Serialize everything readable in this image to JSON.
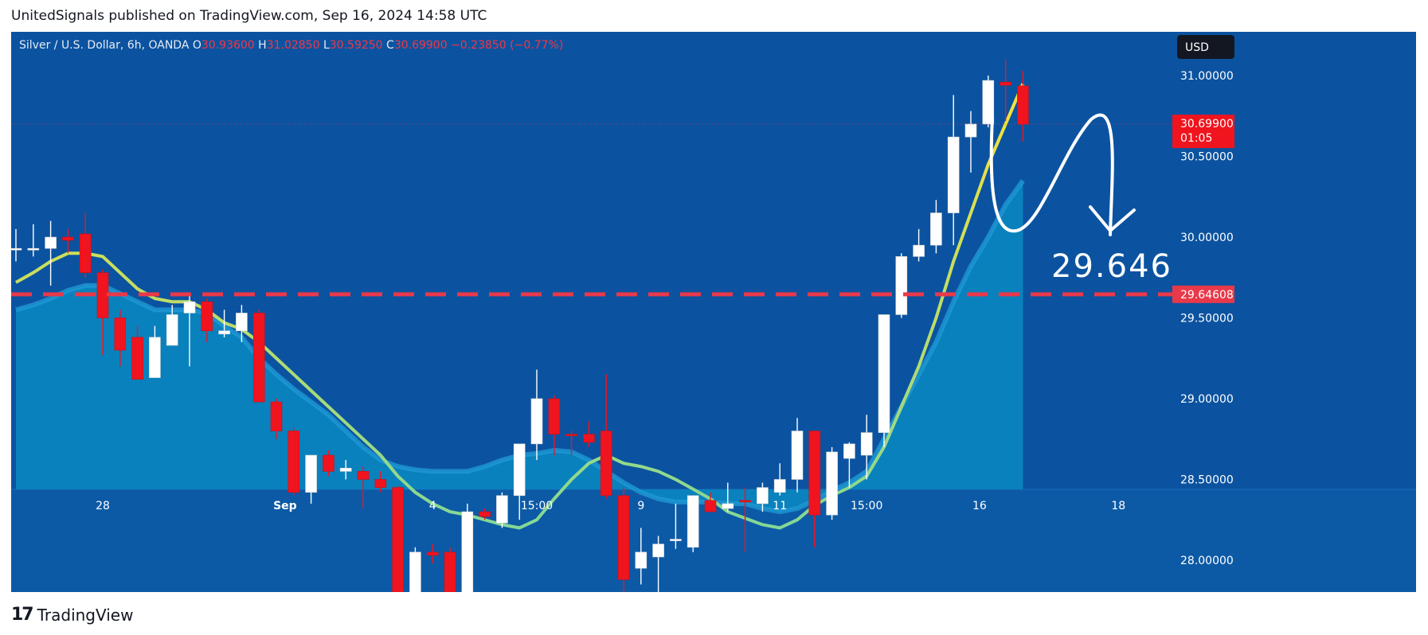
{
  "header": {
    "published": "UnitedSignals published on TradingView.com, Sep 16, 2024 14:58 UTC"
  },
  "legend": {
    "symbol": "Silver / U.S. Dollar, 6h, OANDA",
    "o_label": "O",
    "o_value": "30.93600",
    "h_label": "H",
    "h_value": "31.02850",
    "l_label": "L",
    "l_value": "30.59250",
    "c_label": "C",
    "c_value": "30.69900",
    "change": "−0.23850 (−0.77%)"
  },
  "currency_button": "USD",
  "price_badge": {
    "price": "30.69900",
    "countdown": "01:05"
  },
  "level_badge": "29.64608",
  "annotation_text": "29.646",
  "footer": {
    "brand": "TradingView",
    "mark": "17"
  },
  "colors": {
    "background": "#0b53a0",
    "area_fill": "#0a86bf",
    "up_candle": "#ffffff",
    "down_candle": "#f0141e",
    "ma_yellow": "#f5e23a",
    "level_line": "#e8394a",
    "axis_text": "#ffffff"
  },
  "chart_data": {
    "type": "candlestick",
    "title": "Silver / U.S. Dollar, 6h, OANDA",
    "ylim": [
      27.7,
      31.2
    ],
    "y_ticks": [
      "31.00000",
      "30.50000",
      "30.00000",
      "29.50000",
      "29.00000",
      "28.50000",
      "28.00000"
    ],
    "x_ticks": [
      {
        "label": "28",
        "index": 5
      },
      {
        "label": "Sep",
        "index": 15.5
      },
      {
        "label": "4",
        "index": 24
      },
      {
        "label": "15:00",
        "index": 30
      },
      {
        "label": "9",
        "index": 36
      },
      {
        "label": "11",
        "index": 44
      },
      {
        "label": "15:00",
        "index": 49
      },
      {
        "label": "16",
        "index": 55.5
      },
      {
        "label": "18",
        "index": 63.5
      }
    ],
    "horizontal_level": 29.64608,
    "current_price": 30.699,
    "candles": [
      {
        "o": 29.93,
        "h": 30.05,
        "l": 29.85,
        "c": 29.93
      },
      {
        "o": 29.92,
        "h": 30.08,
        "l": 29.88,
        "c": 29.93
      },
      {
        "o": 29.93,
        "h": 30.1,
        "l": 29.7,
        "c": 30.0
      },
      {
        "o": 30.0,
        "h": 30.05,
        "l": 29.9,
        "c": 29.98
      },
      {
        "o": 30.02,
        "h": 30.15,
        "l": 29.75,
        "c": 29.78
      },
      {
        "o": 29.78,
        "h": 29.8,
        "l": 29.27,
        "c": 29.5
      },
      {
        "o": 29.5,
        "h": 29.55,
        "l": 29.2,
        "c": 29.3
      },
      {
        "o": 29.38,
        "h": 29.45,
        "l": 29.12,
        "c": 29.12
      },
      {
        "o": 29.13,
        "h": 29.45,
        "l": 29.13,
        "c": 29.38
      },
      {
        "o": 29.33,
        "h": 29.58,
        "l": 29.33,
        "c": 29.52
      },
      {
        "o": 29.53,
        "h": 29.65,
        "l": 29.2,
        "c": 29.6
      },
      {
        "o": 29.6,
        "h": 29.62,
        "l": 29.35,
        "c": 29.42
      },
      {
        "o": 29.4,
        "h": 29.55,
        "l": 29.38,
        "c": 29.42
      },
      {
        "o": 29.42,
        "h": 29.58,
        "l": 29.35,
        "c": 29.53
      },
      {
        "o": 29.53,
        "h": 29.55,
        "l": 28.98,
        "c": 28.98
      },
      {
        "o": 28.98,
        "h": 29.0,
        "l": 28.75,
        "c": 28.8
      },
      {
        "o": 28.8,
        "h": 28.82,
        "l": 28.4,
        "c": 28.42
      },
      {
        "o": 28.42,
        "h": 28.65,
        "l": 28.35,
        "c": 28.65
      },
      {
        "o": 28.65,
        "h": 28.68,
        "l": 28.52,
        "c": 28.55
      },
      {
        "o": 28.55,
        "h": 28.62,
        "l": 28.5,
        "c": 28.57
      },
      {
        "o": 28.55,
        "h": 28.58,
        "l": 28.32,
        "c": 28.5
      },
      {
        "o": 28.5,
        "h": 28.55,
        "l": 28.42,
        "c": 28.45
      },
      {
        "o": 28.45,
        "h": 28.46,
        "l": 27.72,
        "c": 27.8
      },
      {
        "o": 27.8,
        "h": 28.08,
        "l": 27.78,
        "c": 28.05
      },
      {
        "o": 28.05,
        "h": 28.1,
        "l": 27.98,
        "c": 28.03
      },
      {
        "o": 28.05,
        "h": 28.08,
        "l": 27.77,
        "c": 27.78
      },
      {
        "o": 27.78,
        "h": 28.35,
        "l": 27.78,
        "c": 28.3
      },
      {
        "o": 28.3,
        "h": 28.32,
        "l": 28.25,
        "c": 28.27
      },
      {
        "o": 28.23,
        "h": 28.42,
        "l": 28.2,
        "c": 28.4
      },
      {
        "o": 28.4,
        "h": 28.72,
        "l": 28.25,
        "c": 28.72
      },
      {
        "o": 28.72,
        "h": 29.18,
        "l": 28.62,
        "c": 29.0
      },
      {
        "o": 29.0,
        "h": 29.02,
        "l": 28.65,
        "c": 28.78
      },
      {
        "o": 28.78,
        "h": 28.8,
        "l": 28.65,
        "c": 28.77
      },
      {
        "o": 28.78,
        "h": 28.86,
        "l": 28.7,
        "c": 28.73
      },
      {
        "o": 28.8,
        "h": 29.15,
        "l": 28.38,
        "c": 28.4
      },
      {
        "o": 28.4,
        "h": 28.45,
        "l": 27.68,
        "c": 27.88
      },
      {
        "o": 27.95,
        "h": 28.2,
        "l": 27.85,
        "c": 28.05
      },
      {
        "o": 28.02,
        "h": 28.15,
        "l": 27.7,
        "c": 28.1
      },
      {
        "o": 28.12,
        "h": 28.35,
        "l": 28.07,
        "c": 28.13
      },
      {
        "o": 28.08,
        "h": 28.4,
        "l": 28.05,
        "c": 28.4
      },
      {
        "o": 28.37,
        "h": 28.42,
        "l": 28.3,
        "c": 28.3
      },
      {
        "o": 28.32,
        "h": 28.48,
        "l": 28.3,
        "c": 28.35
      },
      {
        "o": 28.37,
        "h": 28.45,
        "l": 28.05,
        "c": 28.36
      },
      {
        "o": 28.35,
        "h": 28.48,
        "l": 28.3,
        "c": 28.45
      },
      {
        "o": 28.42,
        "h": 28.6,
        "l": 28.4,
        "c": 28.5
      },
      {
        "o": 28.5,
        "h": 28.88,
        "l": 28.42,
        "c": 28.8
      },
      {
        "o": 28.8,
        "h": 28.8,
        "l": 28.08,
        "c": 28.28
      },
      {
        "o": 28.28,
        "h": 28.7,
        "l": 28.25,
        "c": 28.67
      },
      {
        "o": 28.63,
        "h": 28.73,
        "l": 28.45,
        "c": 28.72
      },
      {
        "o": 28.65,
        "h": 28.9,
        "l": 28.5,
        "c": 28.79
      },
      {
        "o": 28.79,
        "h": 29.52,
        "l": 28.7,
        "c": 29.52
      },
      {
        "o": 29.52,
        "h": 29.9,
        "l": 29.5,
        "c": 29.88
      },
      {
        "o": 29.88,
        "h": 30.05,
        "l": 29.85,
        "c": 29.95
      },
      {
        "o": 29.95,
        "h": 30.23,
        "l": 29.9,
        "c": 30.15
      },
      {
        "o": 30.15,
        "h": 30.88,
        "l": 29.95,
        "c": 30.62
      },
      {
        "o": 30.62,
        "h": 30.78,
        "l": 30.4,
        "c": 30.7
      },
      {
        "o": 30.7,
        "h": 31.0,
        "l": 30.68,
        "c": 30.97
      },
      {
        "o": 30.96,
        "h": 31.1,
        "l": 30.72,
        "c": 30.94
      },
      {
        "o": 30.936,
        "h": 31.0285,
        "l": 30.5925,
        "c": 30.699
      }
    ],
    "ma_fast": [
      29.72,
      29.78,
      29.85,
      29.9,
      29.9,
      29.88,
      29.78,
      29.68,
      29.62,
      29.6,
      29.6,
      29.55,
      29.47,
      29.43,
      29.35,
      29.25,
      29.15,
      29.05,
      28.95,
      28.85,
      28.75,
      28.65,
      28.52,
      28.42,
      28.35,
      28.3,
      28.28,
      28.25,
      28.22,
      28.2,
      28.25,
      28.38,
      28.5,
      28.6,
      28.65,
      28.6,
      28.58,
      28.55,
      28.5,
      28.44,
      28.38,
      28.3,
      28.26,
      28.22,
      28.2,
      28.25,
      28.34,
      28.4,
      28.45,
      28.52,
      28.7,
      28.95,
      29.2,
      29.5,
      29.85,
      30.15,
      30.45,
      30.7,
      30.95
    ],
    "ma_slow": [
      29.55,
      29.58,
      29.62,
      29.67,
      29.7,
      29.7,
      29.65,
      29.6,
      29.55,
      29.55,
      29.55,
      29.53,
      29.45,
      29.38,
      29.25,
      29.15,
      29.06,
      28.98,
      28.9,
      28.8,
      28.7,
      28.62,
      28.58,
      28.56,
      28.55,
      28.55,
      28.55,
      28.58,
      28.62,
      28.65,
      28.66,
      28.68,
      28.67,
      28.62,
      28.55,
      28.48,
      28.42,
      28.38,
      28.36,
      28.36,
      28.36,
      28.35,
      28.35,
      28.32,
      28.3,
      28.32,
      28.37,
      28.43,
      28.48,
      28.55,
      28.75,
      28.95,
      29.15,
      29.35,
      29.6,
      29.82,
      30.0,
      30.2,
      30.35
    ]
  }
}
